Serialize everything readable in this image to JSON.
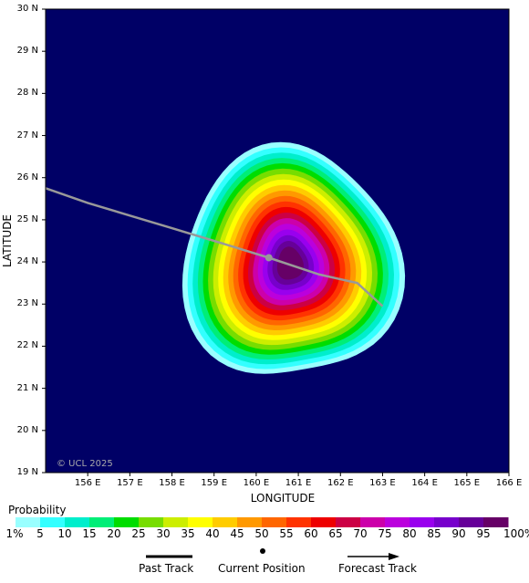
{
  "map": {
    "ylabel": "LATITUDE",
    "xlabel": "LONGITUDE",
    "watermark": "© UCL 2025",
    "lat_ticks": [
      "30 N",
      "29 N",
      "28 N",
      "27 N",
      "26 N",
      "25 N",
      "24 N",
      "23 N",
      "22 N",
      "21 N",
      "20 N",
      "19 N"
    ],
    "lon_ticks": [
      "156 E",
      "157 E",
      "158 E",
      "159 E",
      "160 E",
      "161 E",
      "162 E",
      "163 E",
      "164 E",
      "165 E",
      "166 E"
    ],
    "lat_range": [
      19,
      30
    ],
    "lon_range": [
      155,
      166
    ],
    "background_color": "#000066",
    "current_position": {
      "lon": 160.3,
      "lat": 24.1
    },
    "track": [
      {
        "lon": 155.0,
        "lat": 25.75
      },
      {
        "lon": 156.0,
        "lat": 25.4
      },
      {
        "lon": 157.0,
        "lat": 25.1
      },
      {
        "lon": 158.0,
        "lat": 24.8
      },
      {
        "lon": 159.0,
        "lat": 24.5
      },
      {
        "lon": 160.3,
        "lat": 24.1
      },
      {
        "lon": 161.5,
        "lat": 23.7
      },
      {
        "lon": 162.4,
        "lat": 23.5
      },
      {
        "lon": 163.0,
        "lat": 22.95
      }
    ],
    "probability_center": {
      "lon": 160.8,
      "lat": 23.95
    }
  },
  "legend": {
    "title": "Probability",
    "labels": [
      "1%",
      "5",
      "10",
      "15",
      "20",
      "25",
      "30",
      "35",
      "40",
      "45",
      "50",
      "55",
      "60",
      "65",
      "70",
      "75",
      "80",
      "85",
      "90",
      "95",
      "100%"
    ],
    "colors": [
      "#99ffff",
      "#33ffff",
      "#00eecc",
      "#00ee77",
      "#00dd00",
      "#77dd00",
      "#ccee00",
      "#ffff00",
      "#ffcc00",
      "#ff9900",
      "#ff6600",
      "#ff3300",
      "#ee0000",
      "#cc0044",
      "#cc00aa",
      "#bb00dd",
      "#9900ee",
      "#7700cc",
      "#660099",
      "#660066"
    ]
  },
  "key": {
    "past_track": "Past Track",
    "current_position": "Current Position",
    "forecast_track": "Forecast Track"
  }
}
